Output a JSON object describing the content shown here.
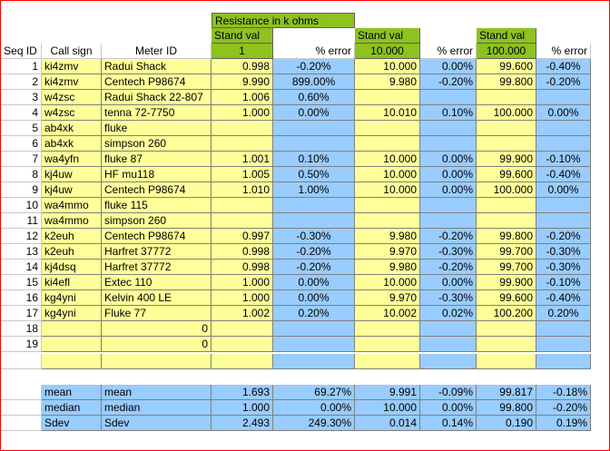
{
  "header": {
    "title": "Resistance in k ohms",
    "columns": [
      "Seq ID",
      "Call sign",
      "Meter ID",
      "Stand val",
      "% error",
      "Stand val",
      "% error",
      "Stand val",
      "% error"
    ],
    "stand_values": [
      "1",
      "10.000",
      "100.000"
    ]
  },
  "rows": [
    {
      "seq": "1",
      "call": "ki4zmv",
      "meter": "Radui Shack",
      "v1": "0.998",
      "e1": "-0.20%",
      "v2": "10.000",
      "e2": "0.00%",
      "v3": "99.600",
      "e3": "-0.40%"
    },
    {
      "seq": "2",
      "call": "ki4zmv",
      "meter": "Centech P98674",
      "v1": "9.990",
      "e1": "899.00%",
      "v2": "9.980",
      "e2": "-0.20%",
      "v3": "99.800",
      "e3": "-0.20%"
    },
    {
      "seq": "3",
      "call": "w4zsc",
      "meter": "Radui Shack 22-807",
      "v1": "1.006",
      "e1": "0.60%",
      "v2": "",
      "e2": "",
      "v3": "",
      "e3": ""
    },
    {
      "seq": "4",
      "call": "w4zsc",
      "meter": "tenna 72-7750",
      "v1": "1.000",
      "e1": "0.00%",
      "v2": "10.010",
      "e2": "0.10%",
      "v3": "100.000",
      "e3": "0.00%"
    },
    {
      "seq": "5",
      "call": "ab4xk",
      "meter": "fluke",
      "v1": "",
      "e1": "",
      "v2": "",
      "e2": "",
      "v3": "",
      "e3": ""
    },
    {
      "seq": "6",
      "call": "ab4xk",
      "meter": "simpson 260",
      "v1": "",
      "e1": "",
      "v2": "",
      "e2": "",
      "v3": "",
      "e3": ""
    },
    {
      "seq": "7",
      "call": "wa4yfn",
      "meter": "fluke 87",
      "v1": "1.001",
      "e1": "0.10%",
      "v2": "10.000",
      "e2": "0.00%",
      "v3": "99.900",
      "e3": "-0.10%"
    },
    {
      "seq": "8",
      "call": "kj4uw",
      "meter": "HF mu118",
      "v1": "1.005",
      "e1": "0.50%",
      "v2": "10.000",
      "e2": "0.00%",
      "v3": "99.600",
      "e3": "-0.40%"
    },
    {
      "seq": "9",
      "call": "kj4uw",
      "meter": "Centech P98674",
      "v1": "1.010",
      "e1": "1.00%",
      "v2": "10.000",
      "e2": "0.00%",
      "v3": "100.000",
      "e3": "0.00%"
    },
    {
      "seq": "10",
      "call": "wa4mmo",
      "meter": "fluke 115",
      "v1": "",
      "e1": "",
      "v2": "",
      "e2": "",
      "v3": "",
      "e3": ""
    },
    {
      "seq": "11",
      "call": "wa4mmo",
      "meter": "simpson 260",
      "v1": "",
      "e1": "",
      "v2": "",
      "e2": "",
      "v3": "",
      "e3": ""
    },
    {
      "seq": "12",
      "call": "k2euh",
      "meter": "Centech P98674",
      "v1": "0.997",
      "e1": "-0.30%",
      "v2": "9.980",
      "e2": "-0.20%",
      "v3": "99.800",
      "e3": "-0.20%"
    },
    {
      "seq": "13",
      "call": "k2euh",
      "meter": "Harfret 37772",
      "v1": "0.998",
      "e1": "-0.20%",
      "v2": "9.970",
      "e2": "-0.30%",
      "v3": "99.700",
      "e3": "-0.30%"
    },
    {
      "seq": "14",
      "call": "kj4dsq",
      "meter": "Harfret 37772",
      "v1": "0.998",
      "e1": "-0.20%",
      "v2": "9.980",
      "e2": "-0.20%",
      "v3": "99.700",
      "e3": "-0.30%"
    },
    {
      "seq": "15",
      "call": "ki4efl",
      "meter": "Extec 110",
      "v1": "1.000",
      "e1": "0.00%",
      "v2": "10.000",
      "e2": "0.00%",
      "v3": "99.900",
      "e3": "-0.10%"
    },
    {
      "seq": "16",
      "call": "kg4yni",
      "meter": "Kelvin 400 LE",
      "v1": "1.000",
      "e1": "0.00%",
      "v2": "9.970",
      "e2": "-0.30%",
      "v3": "99.600",
      "e3": "-0.40%"
    },
    {
      "seq": "17",
      "call": "kg4yni",
      "meter": "Fluke 77",
      "v1": "1.002",
      "e1": "0.20%",
      "v2": "10.002",
      "e2": "0.02%",
      "v3": "100.200",
      "e3": "0.20%"
    },
    {
      "seq": "18",
      "call": "",
      "meter": "0",
      "v1": "",
      "e1": "",
      "v2": "",
      "e2": "",
      "v3": "",
      "e3": ""
    },
    {
      "seq": "19",
      "call": "",
      "meter": "0",
      "v1": "",
      "e1": "",
      "v2": "",
      "e2": "",
      "v3": "",
      "e3": ""
    }
  ],
  "stats": [
    {
      "label_a": "mean",
      "label_b": "mean",
      "v1": "1.693",
      "e1": "69.27%",
      "v2": "9.991",
      "e2": "-0.09%",
      "v3": "99.817",
      "e3": "-0.18%"
    },
    {
      "label_a": "median",
      "label_b": "median",
      "v1": "1.000",
      "e1": "0.00%",
      "v2": "10.000",
      "e2": "0.00%",
      "v3": "99.800",
      "e3": "-0.20%"
    },
    {
      "label_a": "Sdev",
      "label_b": "Sdev",
      "v1": "2.493",
      "e1": "249.30%",
      "v2": "0.014",
      "e2": "0.14%",
      "v3": "0.190",
      "e3": "0.19%"
    }
  ],
  "colors": {
    "yellow": "#ffff99",
    "blue": "#99ccff",
    "green": "#8dc21f",
    "border_red": "#ff0000"
  }
}
